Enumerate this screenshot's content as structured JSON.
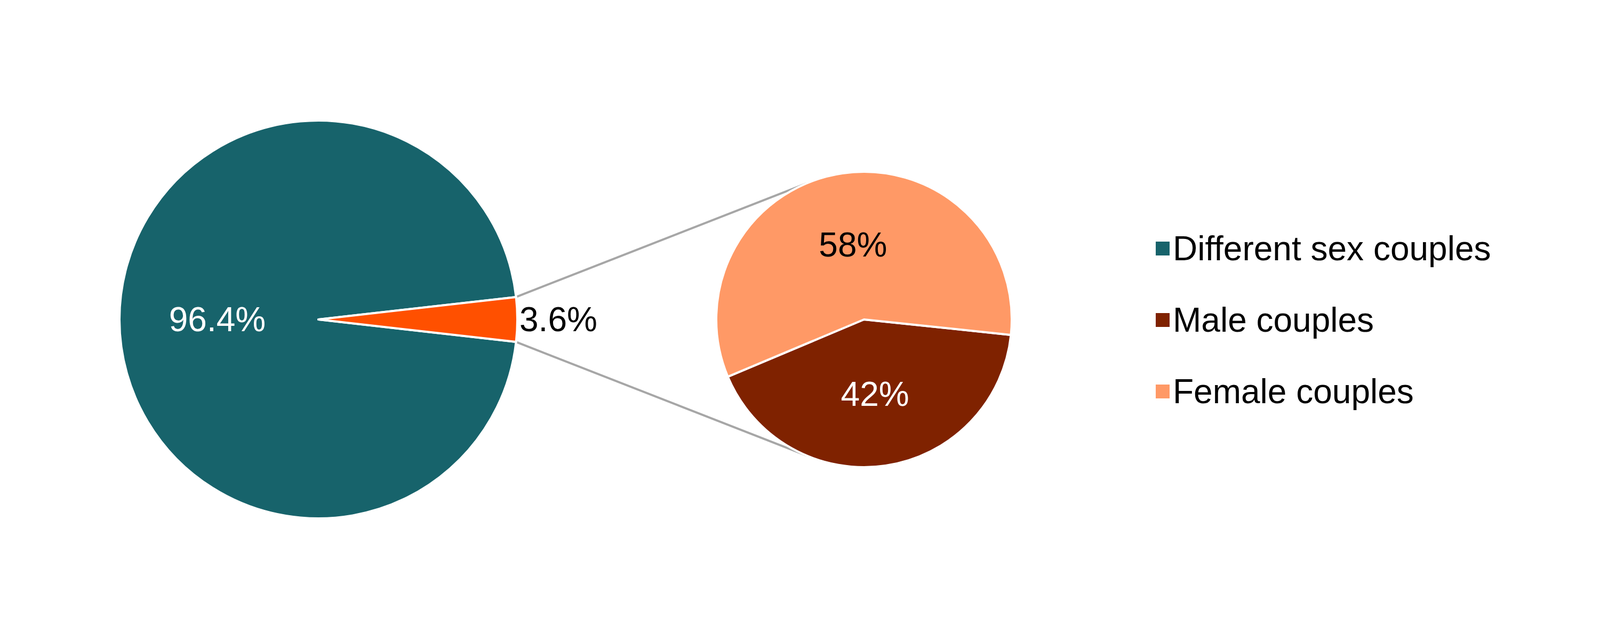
{
  "chart_data": [
    {
      "type": "pie",
      "categories": [
        "Different sex couples",
        null
      ],
      "values": [
        96.4,
        3.6
      ],
      "value_labels": [
        "96.4%",
        "3.6%"
      ],
      "colors": [
        "#17636b",
        "#ff5000"
      ],
      "data_labels": true,
      "legend": "right"
    },
    {
      "type": "pie",
      "categories": [
        "Male couples",
        "Female couples"
      ],
      "values": [
        42,
        58
      ],
      "value_labels": [
        "42%",
        "58%"
      ],
      "colors": [
        "#7f2200",
        "#ff9966"
      ],
      "data_labels": true,
      "legend": "right"
    }
  ]
}
